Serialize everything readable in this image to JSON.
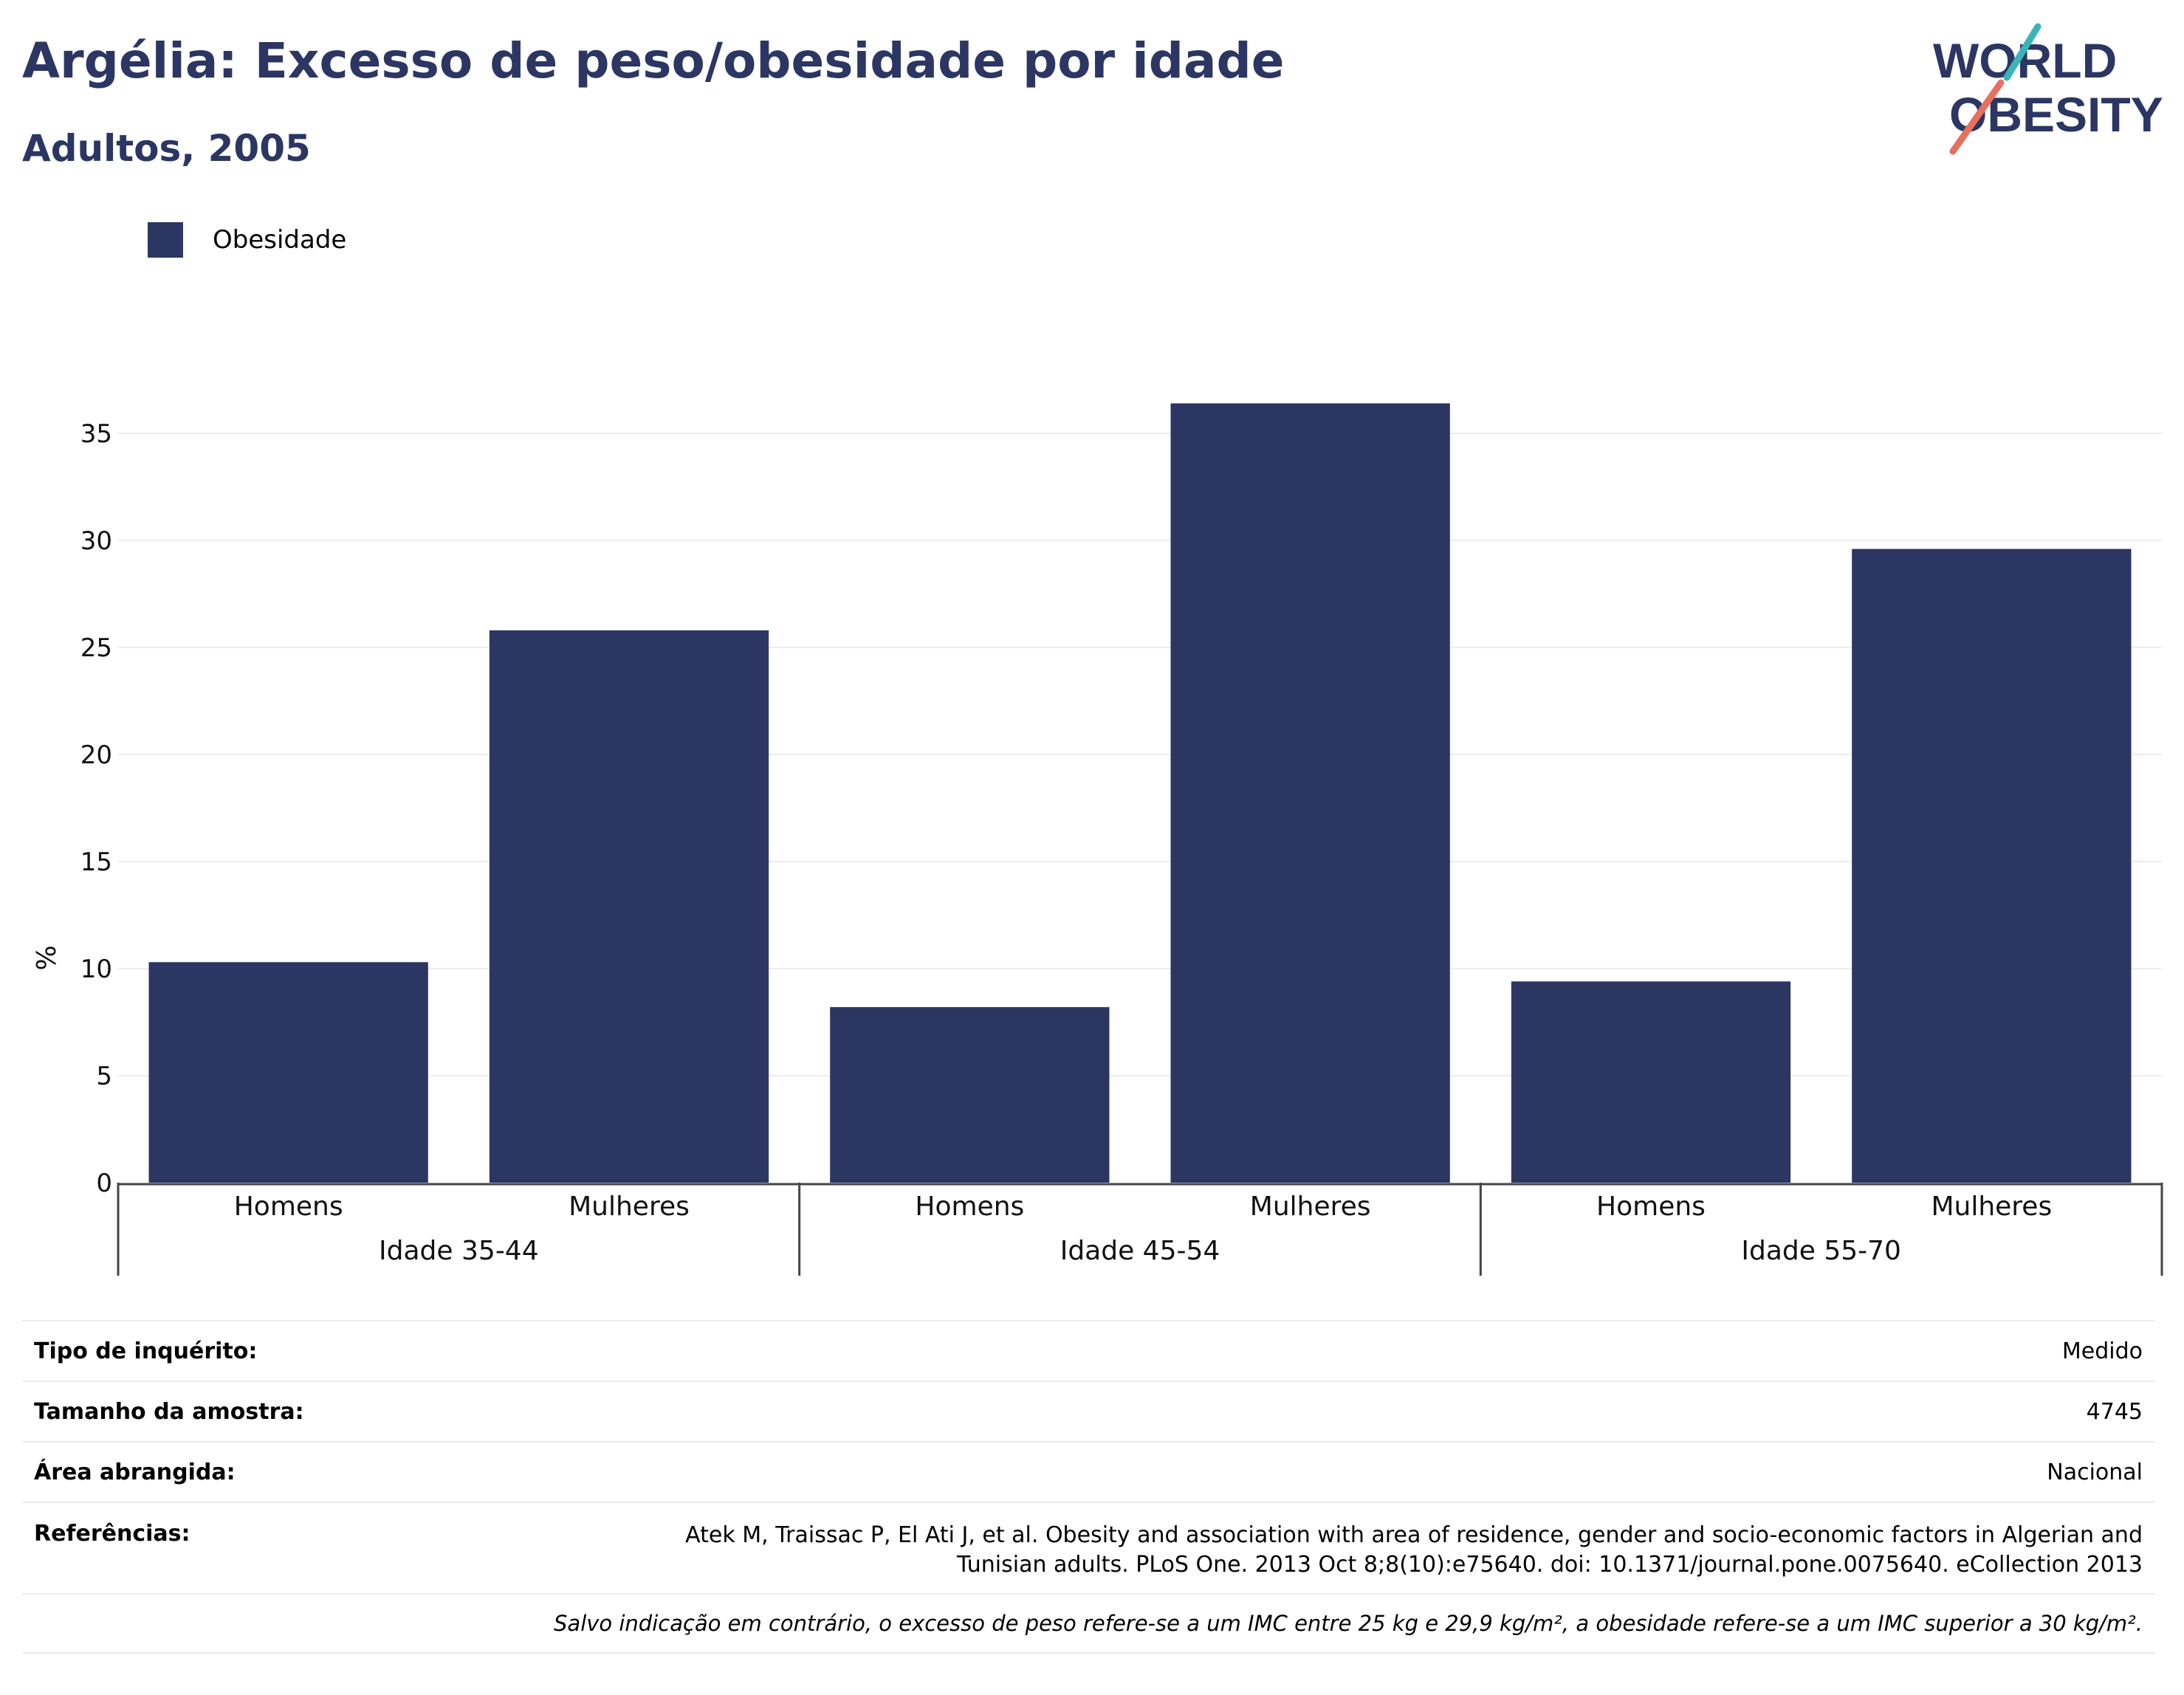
{
  "header": {
    "title": "Argélia: Excesso de peso/obesidade por idade",
    "subtitle": "Adultos, 2005"
  },
  "logo": {
    "line1": "WORLD",
    "line2": "OBESITY",
    "accent_teal": "#3ab4b9",
    "accent_coral": "#e8705f"
  },
  "legend": {
    "label": "Obesidade",
    "color": "#2b3663"
  },
  "chart_data": {
    "type": "bar",
    "title": "",
    "xlabel": "",
    "ylabel": "%",
    "ylim": [
      0,
      37
    ],
    "yticks": [
      0,
      5,
      10,
      15,
      20,
      25,
      30,
      35
    ],
    "grid": true,
    "legend_position": "top-left",
    "bar_color": "#2b3663",
    "groups": [
      "Idade 35-44",
      "Idade 45-54",
      "Idade 55-70"
    ],
    "categories": [
      "Homens",
      "Mulheres",
      "Homens",
      "Mulheres",
      "Homens",
      "Mulheres"
    ],
    "series": [
      {
        "name": "Obesidade",
        "values": [
          10.3,
          25.8,
          8.2,
          36.4,
          9.4,
          29.6
        ]
      }
    ]
  },
  "info": {
    "survey_type": {
      "label": "Tipo de inquérito:",
      "value": "Medido"
    },
    "sample_size": {
      "label": "Tamanho da amostra:",
      "value": "4745"
    },
    "area": {
      "label": "Área abrangida:",
      "value": "Nacional"
    },
    "references": {
      "label": "Referências:",
      "line1": "Atek M, Traissac P, El Ati J, et al. Obesity and association with area of residence, gender and socio-economic factors in Algerian and",
      "line2": "Tunisian adults. PLoS One. 2013 Oct 8;8(10):e75640. doi: 10.1371/journal.pone.0075640. eCollection 2013"
    },
    "note": "Salvo indicação em contrário, o excesso de peso refere-se a um IMC entre 25 kg e 29,9 kg/m², a obesidade refere-se a um IMC superior a 30 kg/m²."
  }
}
